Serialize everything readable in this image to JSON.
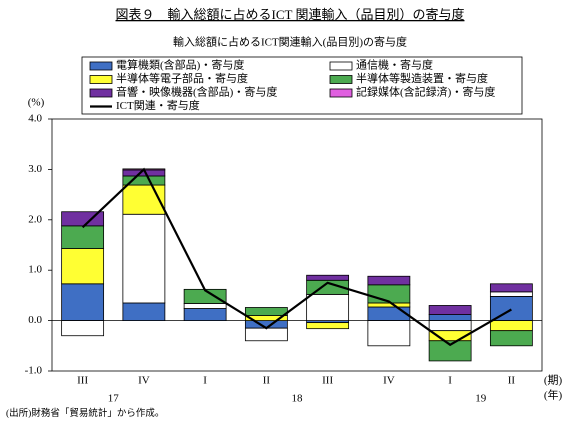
{
  "chart_data": {
    "type": "stacked-bar-line",
    "title": "図表９　輸入総額に占めるICT 関連輸入（品目別）の寄与度",
    "subtitle": "輸入総額に占めるICT関連輸入(品目別)の寄与度",
    "y_unit": "(%)",
    "x_unit_period": "(期)",
    "x_unit_year": "(年)",
    "source": "(出所)財務省「貿易統計」から作成。",
    "categories": [
      "III",
      "IV",
      "I",
      "II",
      "III",
      "IV",
      "I",
      "II"
    ],
    "years": [
      "17",
      "18",
      "19"
    ],
    "ylim": [
      -1.0,
      4.0
    ],
    "yticks": [
      {
        "value": 4,
        "label": "4.0"
      },
      {
        "value": 3,
        "label": "3.0"
      },
      {
        "value": 2,
        "label": "2.0"
      },
      {
        "value": 1,
        "label": "1.0"
      },
      {
        "value": 0,
        "label": "0.0"
      },
      {
        "value": -1,
        "label": "-1.0"
      }
    ],
    "series": [
      {
        "name": "電算機類(含部品)・寄与度",
        "color": "#3f6fc4",
        "values": [
          0.73,
          0.35,
          0.24,
          -0.15,
          -0.04,
          0.27,
          0.12,
          0.48
        ]
      },
      {
        "name": "通信機・寄与度",
        "color": "#ffffff",
        "values": [
          -0.3,
          1.76,
          0.1,
          -0.25,
          0.52,
          -0.5,
          -0.2,
          0.09
        ]
      },
      {
        "name": "半導体等電子部品・寄与度",
        "color": "#ffff33",
        "values": [
          0.7,
          0.58,
          0,
          0.1,
          -0.12,
          0.08,
          -0.2,
          -0.2
        ]
      },
      {
        "name": "半導体等製造装置・寄与度",
        "color": "#4caa50",
        "values": [
          0.45,
          0.18,
          0.28,
          0.16,
          0.28,
          0.36,
          -0.4,
          -0.3
        ]
      },
      {
        "name": "音響・映像機器(含部品)・寄与度",
        "color": "#7030a0",
        "values": [
          0.28,
          0.12,
          0,
          0,
          0.1,
          0.17,
          0.18,
          0.16
        ]
      },
      {
        "name": "記録媒体(含記録済)・寄与度",
        "color": "#e060e0",
        "values": [
          0,
          0.02,
          0,
          0,
          0,
          0,
          0,
          0
        ]
      },
      {
        "name": "ICT関連・寄与度",
        "type": "line",
        "color": "#000000",
        "values": [
          1.85,
          3.0,
          0.6,
          -0.15,
          0.75,
          0.38,
          -0.48,
          0.22
        ]
      }
    ]
  }
}
